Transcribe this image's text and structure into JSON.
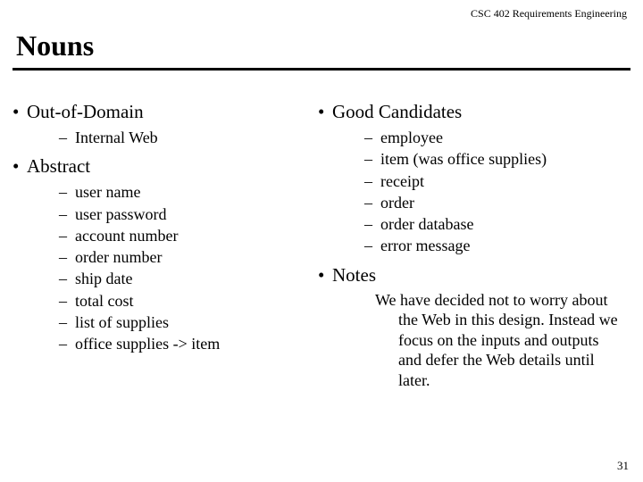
{
  "header": "CSC 402 Requirements Engineering",
  "title": "Nouns",
  "left": {
    "h1": "Out-of-Domain",
    "sub1": [
      "Internal Web"
    ],
    "h2": "Abstract",
    "sub2": [
      "user name",
      "user password",
      "account number",
      "order number",
      "ship date",
      "total cost",
      "list of supplies",
      "office supplies -> item"
    ]
  },
  "right": {
    "h1": "Good Candidates",
    "sub1": [
      "employee",
      "item (was office supplies)",
      "receipt",
      "order",
      "order database",
      "error message"
    ],
    "h2": "Notes",
    "notes": "We have decided not to worry about the Web in this design. Instead we focus on the inputs and outputs and defer the Web details until later."
  },
  "pageNumber": "31",
  "colors": {
    "background": "#ffffff",
    "text": "#000000",
    "rule": "#000000"
  }
}
